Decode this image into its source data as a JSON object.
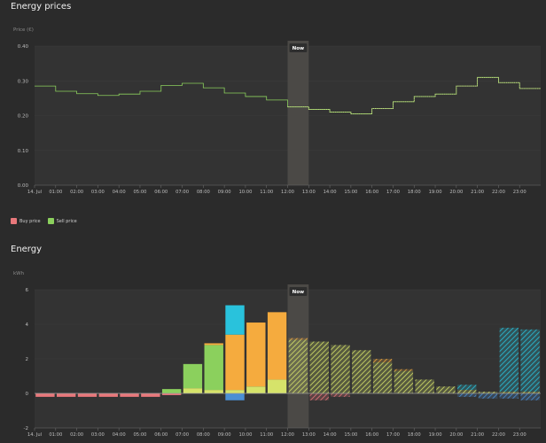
{
  "prices_section": {
    "title": "Energy prices",
    "legend": [
      {
        "label": "Buy price",
        "color": "#e8787b"
      },
      {
        "label": "Sell price",
        "color": "#8bd05d"
      }
    ]
  },
  "energy_section": {
    "title": "Energy"
  },
  "now_label": "Now",
  "colors": {
    "background": "#2b2b2b",
    "plot": "#333333",
    "grid": "#3d3d3d",
    "now_band": "#4b4946",
    "green": "#8bd05d",
    "orange": "#f5ab3e",
    "cyan": "#29c2dc",
    "yellow": "#d6e36a",
    "pink": "#e8787b",
    "blue": "#4a8fd4"
  },
  "chart_data": [
    {
      "type": "line",
      "title": "Energy prices",
      "ylabel": "Price (€)",
      "ylim": [
        0,
        0.4
      ],
      "yticks": [
        "0.00",
        "0.10",
        "0.20",
        "0.30",
        "0.40"
      ],
      "x": [
        "14. Jul",
        "01:00",
        "02:00",
        "03:00",
        "04:00",
        "05:00",
        "06:00",
        "07:00",
        "08:00",
        "09:00",
        "10:00",
        "11:00",
        "12:00",
        "13:00",
        "14:00",
        "15:00",
        "16:00",
        "17:00",
        "18:00",
        "19:00",
        "20:00",
        "21:00",
        "22:00",
        "23:00"
      ],
      "series": [
        {
          "name": "Sell price",
          "values": [
            0.285,
            0.27,
            0.263,
            0.258,
            0.262,
            0.27,
            0.287,
            0.293,
            0.28,
            0.265,
            0.255,
            0.245,
            0.225,
            0.218,
            0.21,
            0.205,
            0.22,
            0.24,
            0.255,
            0.262,
            0.285,
            0.31,
            0.295,
            0.278
          ]
        }
      ],
      "now_index": 12,
      "grid": true
    },
    {
      "type": "bar",
      "title": "Energy",
      "ylabel": "kWh",
      "ylim": [
        -2,
        6
      ],
      "yticks": [
        "-2",
        "0",
        "2",
        "4",
        "6"
      ],
      "categories": [
        "14. Jul",
        "01:00",
        "02:00",
        "03:00",
        "04:00",
        "05:00",
        "06:00",
        "07:00",
        "08:00",
        "09:00",
        "10:00",
        "11:00",
        "12:00",
        "13:00",
        "14:00",
        "15:00",
        "16:00",
        "17:00",
        "18:00",
        "19:00",
        "20:00",
        "21:00",
        "22:00",
        "23:00"
      ],
      "now_index": 12,
      "stacked": true,
      "series": [
        {
          "color": "#e8787b",
          "values": [
            -0.2,
            -0.2,
            -0.2,
            -0.2,
            -0.2,
            -0.2,
            -0.1,
            0,
            0,
            0,
            0,
            0,
            0,
            -0.4,
            -0.2,
            0,
            0,
            0,
            0,
            0,
            0,
            0,
            0,
            0
          ]
        },
        {
          "color": "#4a8fd4",
          "values": [
            0,
            0,
            0,
            0,
            0,
            0,
            0,
            0,
            0,
            -0.4,
            0,
            0,
            0,
            0,
            0,
            0,
            0,
            0,
            0,
            0,
            -0.2,
            -0.3,
            -0.3,
            -0.4
          ]
        },
        {
          "color": "#d6e36a",
          "values": [
            0,
            0,
            0,
            0,
            0,
            0,
            0,
            0.3,
            0.2,
            0.2,
            0.4,
            0.8,
            3.1,
            3.0,
            2.8,
            2.5,
            1.8,
            1.3,
            0.8,
            0.4,
            0.2,
            0.1,
            0.1,
            0.1
          ]
        },
        {
          "color": "#8bd05d",
          "values": [
            0,
            0,
            0,
            0,
            0,
            0,
            0.25,
            1.4,
            2.6,
            0,
            0,
            0,
            0,
            0,
            0,
            0,
            0,
            0,
            0,
            0,
            0,
            0,
            0,
            0
          ]
        },
        {
          "color": "#f5ab3e",
          "values": [
            0,
            0,
            0,
            0,
            0,
            0,
            0,
            0,
            0.1,
            3.2,
            3.7,
            3.9,
            0.1,
            0,
            0,
            0,
            0.2,
            0.1,
            0,
            0,
            0,
            0,
            0,
            0
          ]
        },
        {
          "color": "#29c2dc",
          "values": [
            0,
            0,
            0,
            0,
            0,
            0,
            0,
            0,
            0,
            1.7,
            0,
            0,
            0,
            0,
            0,
            0,
            0,
            0,
            0,
            0,
            0.3,
            0,
            3.7,
            3.6
          ]
        }
      ],
      "grid": true
    }
  ]
}
